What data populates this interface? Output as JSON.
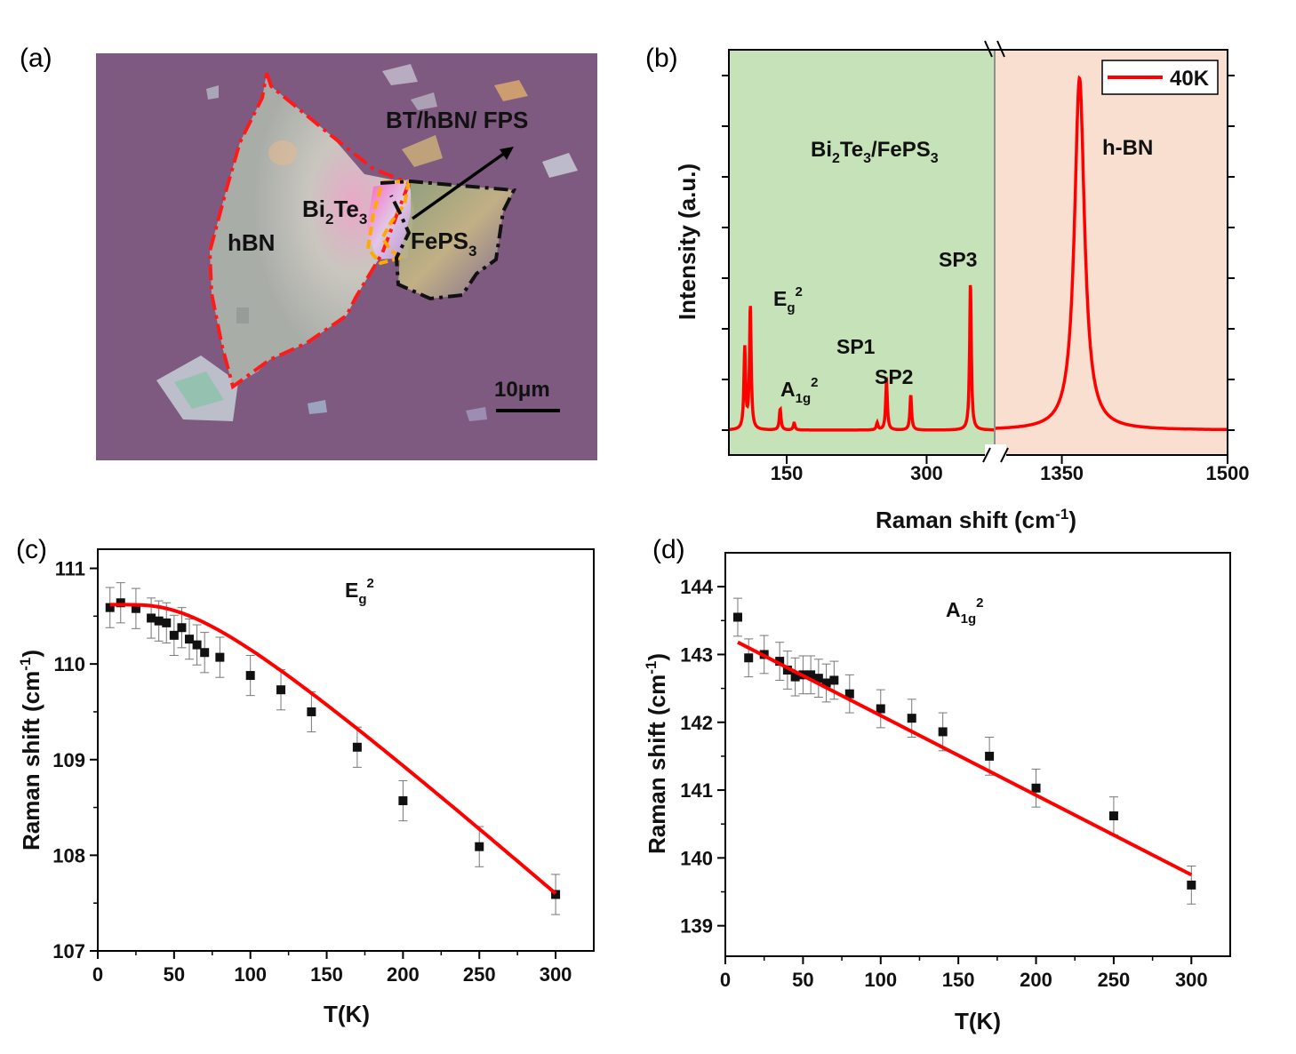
{
  "panels": {
    "a": {
      "label": "(a)",
      "labels": {
        "title": "BT/hBN/ FPS",
        "hbn": "hBN",
        "bite": "Bi",
        "bite_sub1": "2",
        "bite_te": "Te",
        "bite_sub2": "3",
        "feps": "FePS",
        "feps_sub": "3",
        "scalebar": "10μm"
      },
      "colors": {
        "background": "#7e5a80",
        "hbn_outline": "#ff1a1a",
        "bite_outline": "#ffaa00",
        "feps_outline": "#111111"
      }
    },
    "b": {
      "label": "(b)",
      "ylabel": "Intensity (a.u.)",
      "xlabel_main": "Raman shift (cm",
      "xlabel_sup": "-1",
      "xlabel_close": ")",
      "legend": "40K",
      "region_left_main": "Bi",
      "region_left_sub1": "2",
      "region_left_te": "Te",
      "region_left_sub2": "3",
      "region_left_rest": "/FePS",
      "region_left_sub3": "3",
      "region_right": "h-BN",
      "peaks": {
        "eg_main": "E",
        "eg_sub": "g",
        "eg_sup": "2",
        "a1g_main": "A",
        "a1g_sub": "1g",
        "a1g_sup": "2",
        "sp1": "SP1",
        "sp2": "SP2",
        "sp3": "SP3"
      },
      "colors": {
        "left_region": "#c6e2b8",
        "right_region": "#f9dfd0",
        "line": "#ff0000"
      }
    },
    "c": {
      "label": "(c)",
      "ylabel_main": "Raman shift (cm",
      "ylabel_sup": "-1",
      "ylabel_close": ")",
      "xlabel": "T(K)",
      "annot_main": "E",
      "annot_sub": "g",
      "annot_sup": "2"
    },
    "d": {
      "label": "(d)",
      "ylabel_main": "Raman shift (cm",
      "ylabel_sup": "-1",
      "ylabel_close": ")",
      "xlabel": "T(K)",
      "annot_main": "A",
      "annot_sub": "1g",
      "annot_sup": "2"
    }
  },
  "chart_data": [
    {
      "panel": "b",
      "type": "line",
      "broken_x_axis": true,
      "segments": [
        {
          "xlim": [
            88,
            372
          ],
          "xticks": [
            150,
            300
          ]
        },
        {
          "xlim": [
            1290,
            1500
          ],
          "xticks": [
            1350,
            1500
          ]
        }
      ],
      "series": [
        {
          "name": "40K",
          "color": "#ff0000"
        }
      ],
      "peaks": [
        {
          "label": "",
          "x": 105,
          "height": 0.23
        },
        {
          "label": "Eg2",
          "x": 111,
          "height": 0.35
        },
        {
          "label": "A1g2",
          "x": 143,
          "height": 0.06
        },
        {
          "label": "",
          "x": 158,
          "height": 0.02
        },
        {
          "label": "",
          "x": 247,
          "height": 0.02
        },
        {
          "label": "SP1",
          "x": 257,
          "height": 0.14
        },
        {
          "label": "SP2",
          "x": 283,
          "height": 0.1
        },
        {
          "label": "SP3",
          "x": 347,
          "height": 0.42
        },
        {
          "label": "h-BN",
          "x": 1366,
          "height": 1.0
        }
      ]
    },
    {
      "panel": "c",
      "type": "scatter",
      "xlim": [
        0,
        325
      ],
      "ylim": [
        107,
        111.2
      ],
      "xticks": [
        0,
        50,
        100,
        150,
        200,
        250,
        300
      ],
      "yticks": [
        107,
        108,
        109,
        110,
        111
      ],
      "series": [
        {
          "name": "",
          "points": [
            [
              8,
              110.59
            ],
            [
              15,
              110.64
            ],
            [
              25,
              110.58
            ],
            [
              35,
              110.48
            ],
            [
              40,
              110.45
            ],
            [
              45,
              110.43
            ],
            [
              50,
              110.3
            ],
            [
              55,
              110.38
            ],
            [
              60,
              110.26
            ],
            [
              65,
              110.2
            ],
            [
              70,
              110.12
            ],
            [
              80,
              110.07
            ],
            [
              100,
              109.88
            ],
            [
              120,
              109.73
            ],
            [
              140,
              109.5
            ],
            [
              170,
              109.13
            ],
            [
              200,
              108.57
            ],
            [
              250,
              108.09
            ],
            [
              300,
              107.59
            ]
          ],
          "error": 0.21
        }
      ],
      "fit": {
        "color": "#ff0000",
        "x0": 8,
        "y0": 110.62,
        "x1": 300,
        "y1": 107.6,
        "theta": 190
      }
    },
    {
      "panel": "d",
      "type": "scatter",
      "xlim": [
        0,
        325
      ],
      "ylim": [
        138.55,
        144.5
      ],
      "xticks": [
        0,
        50,
        100,
        150,
        200,
        250,
        300
      ],
      "yticks": [
        139,
        140,
        141,
        142,
        143,
        144
      ],
      "series": [
        {
          "name": "",
          "points": [
            [
              8,
              143.55
            ],
            [
              15,
              142.95
            ],
            [
              25,
              143.0
            ],
            [
              35,
              142.9
            ],
            [
              40,
              142.77
            ],
            [
              45,
              142.67
            ],
            [
              50,
              142.7
            ],
            [
              55,
              142.7
            ],
            [
              60,
              142.65
            ],
            [
              65,
              142.58
            ],
            [
              70,
              142.62
            ],
            [
              80,
              142.42
            ],
            [
              100,
              142.2
            ],
            [
              120,
              142.06
            ],
            [
              140,
              141.86
            ],
            [
              170,
              141.5
            ],
            [
              200,
              141.03
            ],
            [
              250,
              140.62
            ],
            [
              300,
              139.6
            ]
          ],
          "error": 0.28
        }
      ],
      "fit": {
        "color": "#ff0000",
        "points": [
          [
            8,
            143.18
          ],
          [
            300,
            139.75
          ]
        ]
      }
    }
  ]
}
